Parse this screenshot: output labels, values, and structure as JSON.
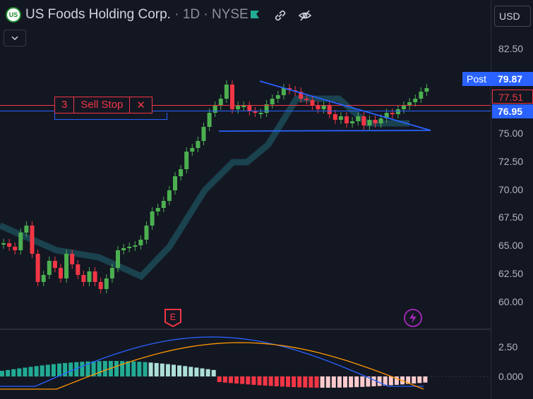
{
  "header": {
    "logo_text": "US",
    "symbol": "US Foods Holding Corp.",
    "meta": " · 1D · NYSE"
  },
  "currency": "USD",
  "price_axis": {
    "ticks": [
      "82.50",
      "75.00",
      "72.50",
      "70.00",
      "67.50",
      "65.00",
      "62.50",
      "60.00"
    ]
  },
  "tags": {
    "post_label": "Post",
    "post_price": "79.87",
    "sell_stop_price": "77.51",
    "line_price": "76.95"
  },
  "order": {
    "qty": "3",
    "label": "Sell Stop",
    "close": "✕"
  },
  "events": {
    "earnings": "E",
    "dividend_icon": "lightning-icon"
  },
  "macd_axis": {
    "ticks": [
      "2.50",
      "0.000"
    ]
  },
  "colors": {
    "up": "#4caf50",
    "down": "#f23645",
    "line": "#2962ff",
    "signal": "#ff9800"
  }
}
